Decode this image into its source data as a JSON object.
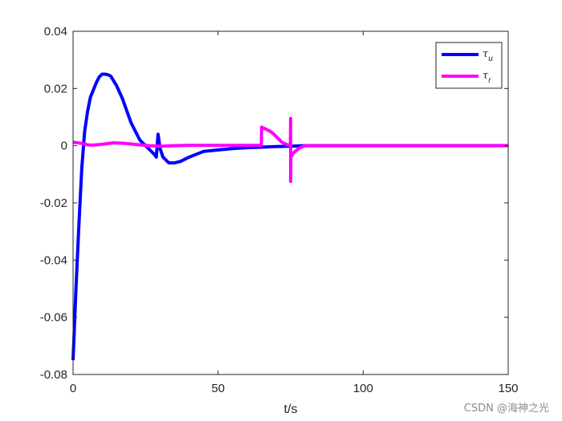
{
  "chart_data": {
    "type": "line",
    "xlabel": "t/s",
    "ylabel": "",
    "xlim": [
      0,
      150
    ],
    "ylim": [
      -0.08,
      0.04
    ],
    "xticks": [
      0,
      50,
      100,
      150
    ],
    "yticks": [
      0.04,
      0.02,
      0,
      -0.02,
      -0.04,
      -0.06,
      -0.08
    ],
    "ytick_labels": [
      "0.04",
      "0.02",
      "0",
      "-0.02",
      "-0.04",
      "-0.06",
      "-0.08"
    ],
    "grid": false,
    "legend_position": "top-right",
    "series": [
      {
        "name": "τ",
        "subscript": "u",
        "color": "#0000ff",
        "x": [
          0,
          1,
          2,
          3,
          4,
          5,
          6,
          7,
          8,
          9,
          10,
          11,
          12,
          13,
          15,
          17,
          20,
          23,
          25,
          27,
          28,
          28.7,
          29.3,
          30,
          31,
          32,
          33,
          35,
          37,
          40,
          45,
          50,
          55,
          60,
          65,
          70,
          75,
          80,
          90,
          100,
          120,
          150
        ],
        "y": [
          -0.075,
          -0.05,
          -0.028,
          -0.008,
          0.005,
          0.012,
          0.017,
          0.0195,
          0.022,
          0.024,
          0.025,
          0.025,
          0.0248,
          0.0243,
          0.021,
          0.0165,
          0.008,
          0.002,
          0.0,
          -0.002,
          -0.003,
          -0.004,
          0.004,
          -0.001,
          -0.004,
          -0.005,
          -0.006,
          -0.006,
          -0.0055,
          -0.004,
          -0.002,
          -0.0015,
          -0.001,
          -0.0007,
          -0.0005,
          -0.0003,
          -0.0002,
          0.0,
          0.0,
          0.0,
          0.0,
          0.0
        ]
      },
      {
        "name": "τ",
        "subscript": "r",
        "color": "#ff00ff",
        "x": [
          0,
          3,
          5,
          7,
          10,
          14,
          18,
          22,
          26,
          30,
          35,
          40,
          45,
          50,
          55,
          60,
          64.9,
          65,
          66,
          67,
          68,
          69,
          70,
          71,
          72,
          73,
          74,
          74.9,
          75,
          75,
          75.1,
          76,
          78,
          80,
          85,
          90,
          100,
          120,
          150
        ],
        "y": [
          0.0012,
          0.0008,
          0.0003,
          0.0002,
          0.0005,
          0.001,
          0.0008,
          0.0004,
          0.0,
          -0.0002,
          0.0,
          0.0001,
          0.0001,
          0.0001,
          0.0001,
          0.0001,
          0.0001,
          0.0065,
          0.006,
          0.0055,
          0.005,
          0.0042,
          0.0032,
          0.0022,
          0.0012,
          0.0007,
          0.0003,
          0.0,
          0.0095,
          -0.0125,
          -0.004,
          -0.0025,
          -0.0008,
          0.0,
          0.0,
          0.0,
          0.0,
          0.0,
          0.0
        ]
      }
    ]
  },
  "watermark": "CSDN @海神之光"
}
